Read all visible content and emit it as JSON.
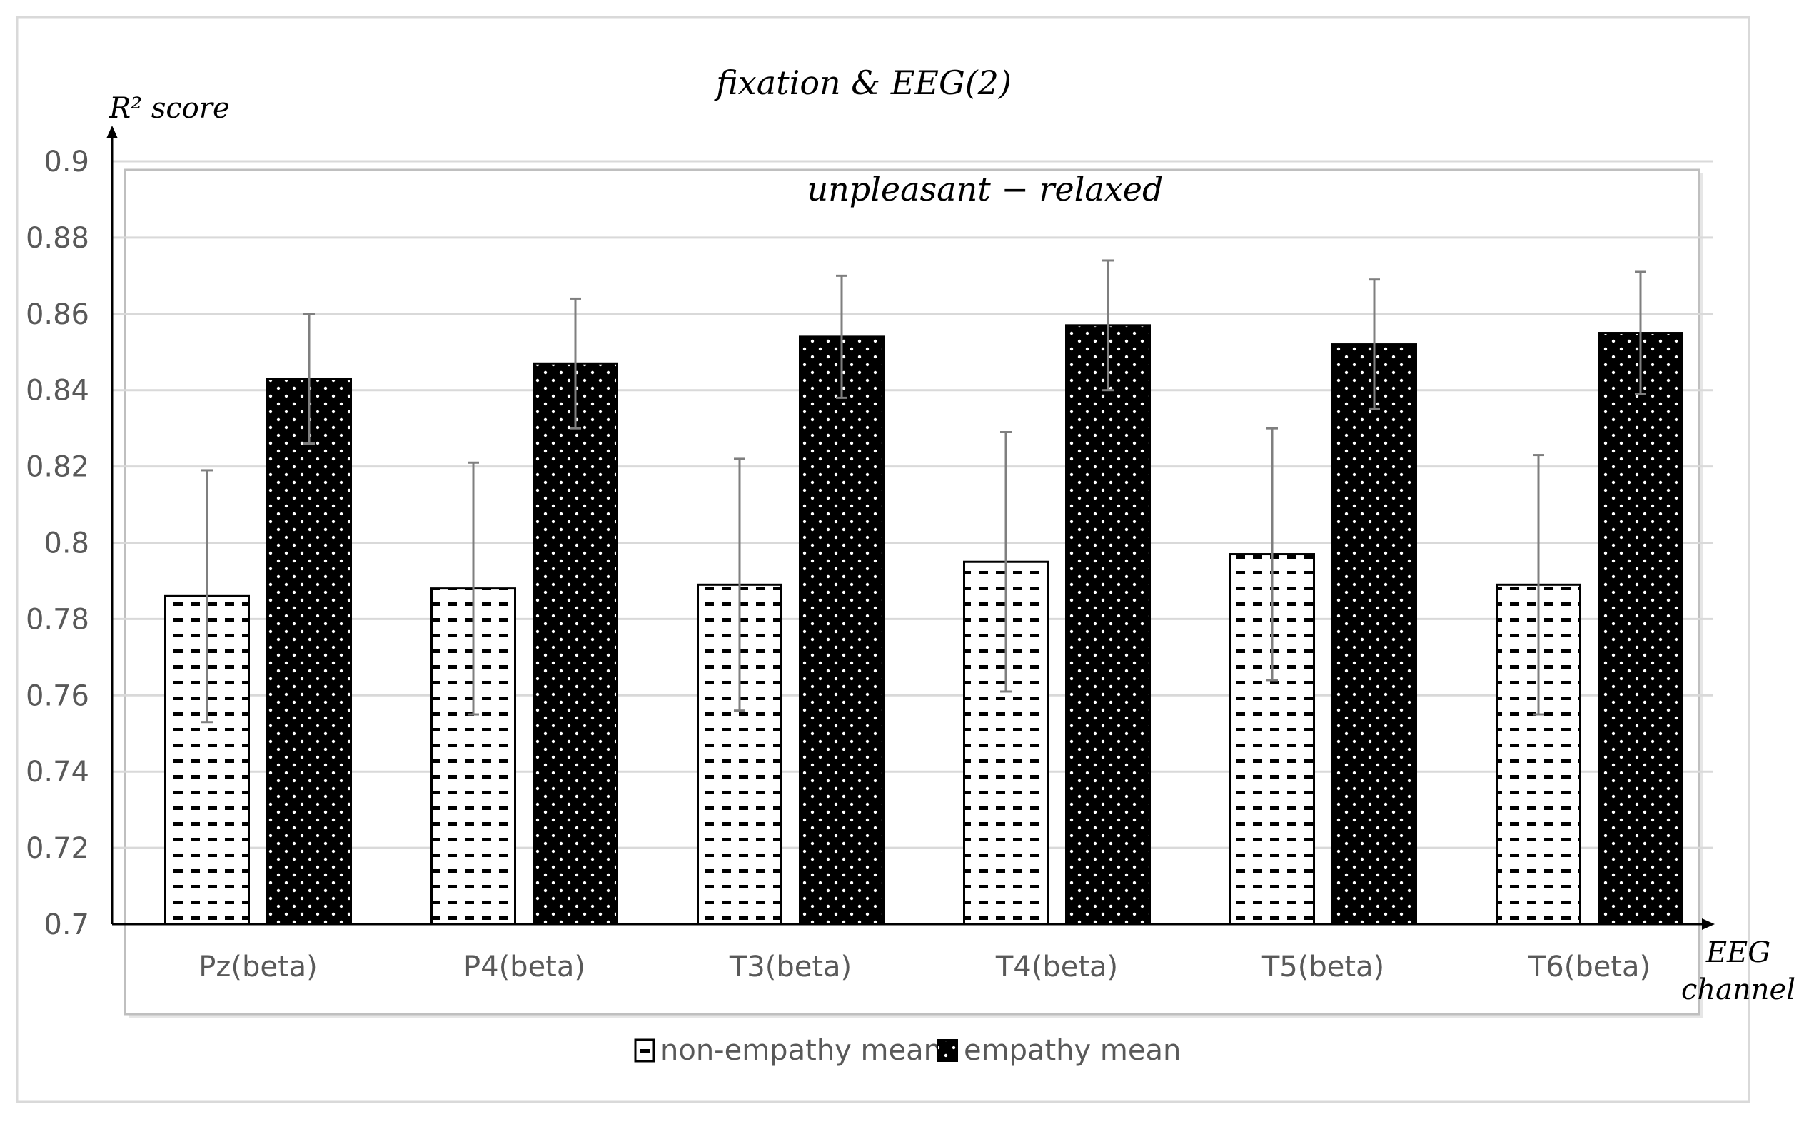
{
  "chart_data": {
    "type": "bar",
    "title": "fixation & EEG(2)",
    "subtitle": "unpleasant − relaxed",
    "xlabel": [
      "EEG",
      "channel"
    ],
    "ylabel": "R² score",
    "ylim": [
      0.7,
      0.9
    ],
    "yticks": [
      0.7,
      0.72,
      0.74,
      0.76,
      0.78,
      0.8,
      0.82,
      0.84,
      0.86,
      0.88,
      0.9
    ],
    "ytick_labels": [
      "0.7",
      "0.72",
      "0.74",
      "0.76",
      "0.78",
      "0.8",
      "0.82",
      "0.84",
      "0.86",
      "0.88",
      "0.9"
    ],
    "categories": [
      "Pz(beta)",
      "P4(beta)",
      "T3(beta)",
      "T4(beta)",
      "T5(beta)",
      "T6(beta)"
    ],
    "series": [
      {
        "name": "non-empathy mean",
        "values": [
          0.786,
          0.788,
          0.789,
          0.795,
          0.797,
          0.789
        ],
        "error": [
          0.033,
          0.033,
          0.033,
          0.034,
          0.033,
          0.034
        ],
        "fill": "dashes-on-white"
      },
      {
        "name": "empathy mean",
        "values": [
          0.843,
          0.847,
          0.854,
          0.857,
          0.852,
          0.855
        ],
        "error": [
          0.017,
          0.017,
          0.016,
          0.017,
          0.017,
          0.016
        ],
        "fill": "dots-on-black"
      }
    ],
    "grid": true,
    "legend_position": "bottom-center",
    "colors": {
      "grid": "#d9d9d9",
      "axis": "#000000",
      "tick_text": "#595959",
      "error_bar": "#7f7f7f",
      "bar_dark": "#000000",
      "bar_light": "#ffffff"
    }
  }
}
